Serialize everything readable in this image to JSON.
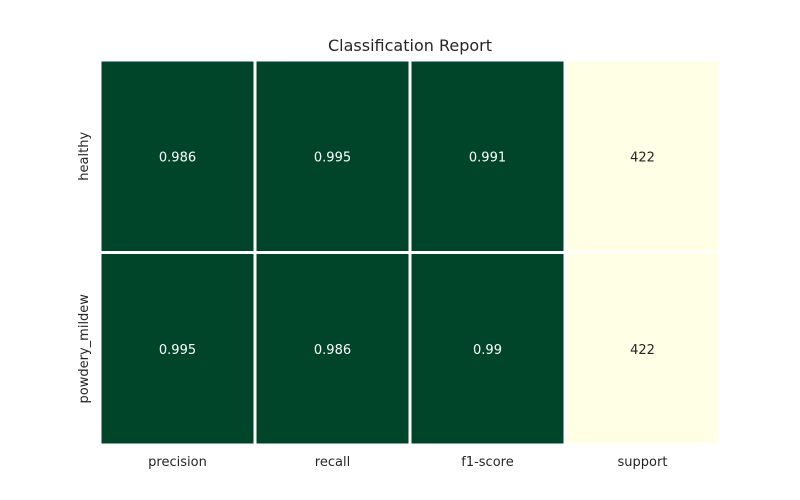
{
  "chart_data": {
    "type": "heatmap",
    "title": "Classification Report",
    "xlabel": "",
    "ylabel": "",
    "x_categories": [
      "precision",
      "recall",
      "f1-score",
      "support"
    ],
    "y_categories": [
      "healthy",
      "powdery_mildew"
    ],
    "values": [
      [
        0.986,
        0.995,
        0.991,
        422
      ],
      [
        0.995,
        0.986,
        0.99,
        422
      ]
    ],
    "cell_labels": [
      [
        "0.986",
        "0.995",
        "0.991",
        "422"
      ],
      [
        "0.995",
        "0.986",
        "0.99",
        "422"
      ]
    ],
    "colormap": "YlGn",
    "colors": {
      "high": "#004529",
      "low": "#ffffe5",
      "text_on_dark": "#ffffff",
      "text_on_light": "#262626",
      "grid_lines": "#ffffff",
      "tick_text": "#262626"
    },
    "colorbar": false,
    "grid": false
  }
}
